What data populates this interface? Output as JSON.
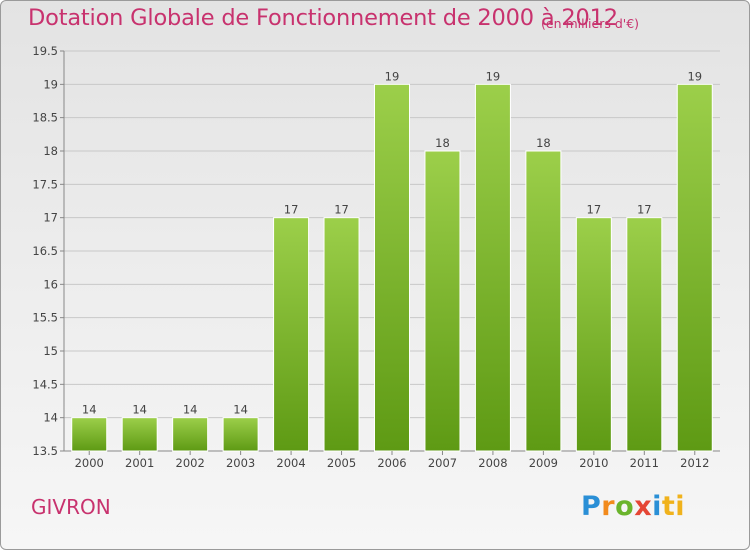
{
  "title": "Dotation Globale de Fonctionnement de 2000 à 2012",
  "subtitle": "(en milliers d'€)",
  "commune": "GIVRON",
  "logo": {
    "parts": [
      "P",
      "r",
      "o",
      "x",
      "i",
      "ti"
    ]
  },
  "colors": {
    "title": "#c8326e",
    "bar_top": "#9ccf4a",
    "bar_bottom": "#5e9a14",
    "grid": "#c8c8c8"
  },
  "chart_data": {
    "type": "bar",
    "title": "Dotation Globale de Fonctionnement de 2000 à 2012",
    "subtitle": "(en milliers d'€)",
    "xlabel": "",
    "ylabel": "",
    "categories": [
      "2000",
      "2001",
      "2002",
      "2003",
      "2004",
      "2005",
      "2006",
      "2007",
      "2008",
      "2009",
      "2010",
      "2011",
      "2012"
    ],
    "values": [
      14,
      14,
      14,
      14,
      17,
      17,
      19,
      18,
      19,
      18,
      17,
      17,
      19
    ],
    "data_labels": [
      "14",
      "14",
      "14",
      "14",
      "17",
      "17",
      "19",
      "18",
      "19",
      "18",
      "17",
      "17",
      "19"
    ],
    "ylim": [
      13.5,
      19.5
    ],
    "yticks": [
      13.5,
      14,
      14.5,
      15,
      15.5,
      16,
      16.5,
      17,
      17.5,
      18,
      18.5,
      19,
      19.5
    ],
    "ytick_labels": [
      "13.5",
      "14",
      "14.5",
      "15",
      "15.5",
      "16",
      "16.5",
      "17",
      "17.5",
      "18",
      "18.5",
      "19",
      "19.5"
    ],
    "grid": true,
    "legend": "none"
  }
}
